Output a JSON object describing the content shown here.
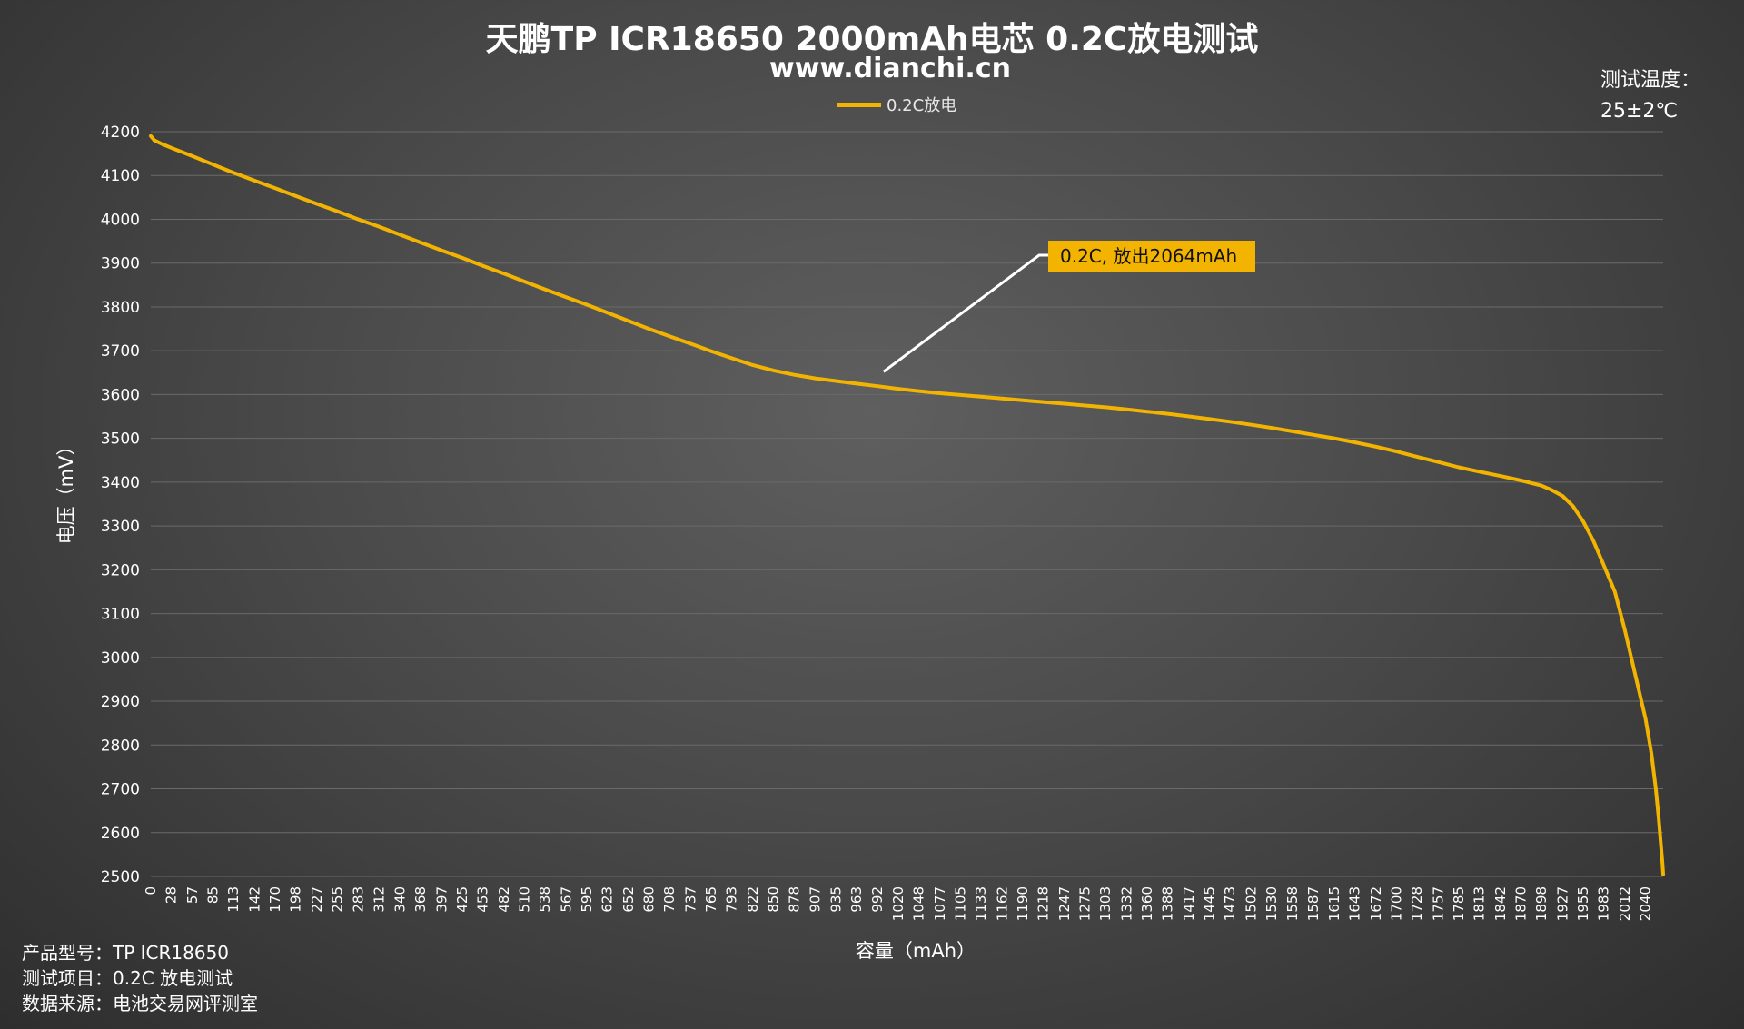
{
  "title": "天鹏TP ICR18650 2000mAh电芯 0.2C放电测试",
  "subtitle": "www.dianchi.cn",
  "temperature": {
    "label": "测试温度：",
    "value": "25±2℃"
  },
  "info": {
    "model": "产品型号：TP ICR18650",
    "item": "测试项目：0.2C 放电测试",
    "source": "数据来源：电池交易网评测室"
  },
  "colors": {
    "series": "#f2b400",
    "grid": "#6a6a6a",
    "leader": "#ffffff",
    "annotation_bg": "#f2b400"
  },
  "chart_data": {
    "type": "line",
    "xlabel": "容量（mAh）",
    "ylabel": "电压（mV）",
    "xlim": [
      0,
      2064
    ],
    "ylim": [
      2500,
      4200
    ],
    "yticks": [
      2500,
      2600,
      2700,
      2800,
      2900,
      3000,
      3100,
      3200,
      3300,
      3400,
      3500,
      3600,
      3700,
      3800,
      3900,
      4000,
      4100,
      4200
    ],
    "xtick_labels": [
      "0",
      "28",
      "57",
      "85",
      "113",
      "142",
      "170",
      "198",
      "227",
      "255",
      "283",
      "312",
      "340",
      "368",
      "397",
      "425",
      "453",
      "482",
      "510",
      "538",
      "567",
      "595",
      "623",
      "652",
      "680",
      "708",
      "737",
      "765",
      "793",
      "822",
      "850",
      "878",
      "907",
      "935",
      "963",
      "992",
      "1020",
      "1048",
      "1077",
      "1105",
      "1133",
      "1162",
      "1190",
      "1218",
      "1247",
      "1275",
      "1303",
      "1332",
      "1360",
      "1388",
      "1417",
      "1445",
      "1473",
      "1502",
      "1530",
      "1558",
      "1587",
      "1615",
      "1643",
      "1672",
      "1700",
      "1728",
      "1757",
      "1785",
      "1813",
      "1842",
      "1870",
      "1898",
      "1927",
      "1955",
      "1983",
      "2012",
      "2040"
    ],
    "grid": true,
    "legend": "top-center",
    "series": [
      {
        "name": "0.2C放电",
        "x": [
          0,
          5,
          15,
          28,
          57,
          85,
          113,
          142,
          170,
          198,
          227,
          255,
          283,
          312,
          340,
          368,
          397,
          425,
          453,
          482,
          510,
          538,
          567,
          595,
          623,
          652,
          680,
          708,
          737,
          765,
          793,
          822,
          850,
          878,
          907,
          935,
          963,
          992,
          1020,
          1048,
          1077,
          1105,
          1133,
          1162,
          1190,
          1218,
          1247,
          1275,
          1303,
          1332,
          1360,
          1388,
          1417,
          1445,
          1473,
          1502,
          1530,
          1558,
          1587,
          1615,
          1643,
          1672,
          1700,
          1728,
          1757,
          1785,
          1813,
          1842,
          1870,
          1898,
          1912,
          1927,
          1941,
          1955,
          1969,
          1983,
          1998,
          2012,
          2026,
          2040,
          2048,
          2054,
          2058,
          2061,
          2063,
          2064
        ],
        "values": [
          4190,
          4180,
          4172,
          4163,
          4144,
          4125,
          4106,
          4088,
          4071,
          4053,
          4035,
          4018,
          4000,
          3983,
          3965,
          3947,
          3929,
          3912,
          3894,
          3876,
          3858,
          3840,
          3822,
          3805,
          3787,
          3768,
          3750,
          3733,
          3716,
          3699,
          3683,
          3667,
          3655,
          3645,
          3637,
          3631,
          3625,
          3619,
          3613,
          3608,
          3603,
          3599,
          3595,
          3591,
          3587,
          3583,
          3579,
          3575,
          3571,
          3566,
          3561,
          3556,
          3550,
          3544,
          3538,
          3531,
          3524,
          3516,
          3508,
          3500,
          3491,
          3481,
          3470,
          3458,
          3446,
          3434,
          3424,
          3414,
          3404,
          3392,
          3382,
          3368,
          3345,
          3310,
          3265,
          3210,
          3150,
          3060,
          2960,
          2860,
          2780,
          2700,
          2630,
          2570,
          2530,
          2505
        ]
      }
    ],
    "annotation": {
      "text": "0.2C, 放出2064mAh",
      "x": 1000,
      "y": 3652
    }
  }
}
